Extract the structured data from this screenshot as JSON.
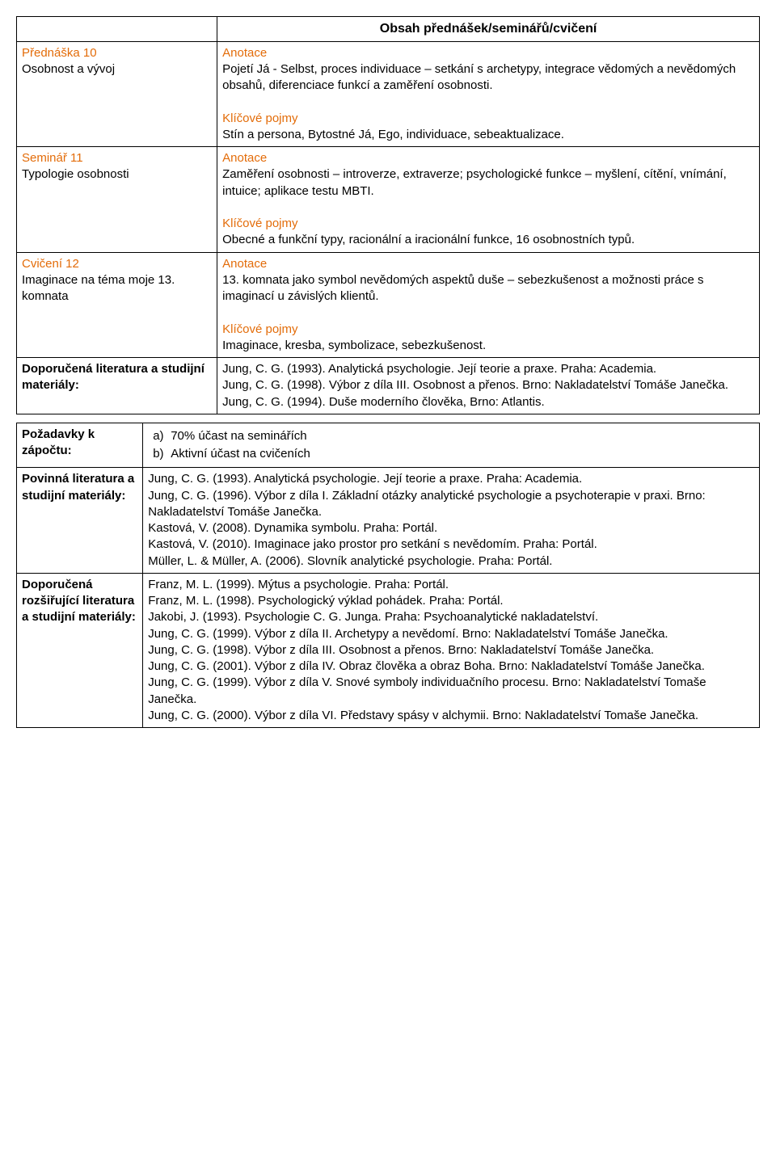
{
  "colors": {
    "accent": "#e36c09",
    "text": "#000000",
    "border": "#000000",
    "bg": "#ffffff"
  },
  "t1": {
    "header": "Obsah přednášek/seminářů/cvičení",
    "rows": [
      {
        "left_title": "Přednáška 10",
        "left_sub": "Osobnost a vývoj",
        "anot_label": "Anotace",
        "anot": "Pojetí Já - Selbst, proces individuace – setkání s archetypy, integrace vědomých a nevědomých obsahů, diferenciace funkcí a zaměření osobnosti.",
        "kp_label": "Klíčové pojmy",
        "kp": "Stín a persona, Bytostné Já, Ego, individuace, sebeaktualizace."
      },
      {
        "left_title": "Seminář 11",
        "left_sub": "Typologie osobnosti",
        "anot_label": "Anotace",
        "anot": "Zaměření osobnosti – introverze, extraverze; psychologické funkce – myšlení, cítění, vnímání, intuice; aplikace testu MBTI.",
        "kp_label": "Klíčové pojmy",
        "kp": "Obecné a funkční typy, racionální a iracionální funkce, 16 osobnostních typů."
      },
      {
        "left_title": "Cvičení 12",
        "left_sub": "Imaginace na téma moje 13. komnata",
        "anot_label": "Anotace",
        "anot": "13. komnata jako symbol nevědomých aspektů duše – sebezkušenost a možnosti práce s imaginací u závislých klientů.",
        "kp_label": "Klíčové pojmy",
        "kp": "Imaginace, kresba, symbolizace, sebezkušenost."
      }
    ],
    "lit_left": "Doporučená literatura a studijní materiály:",
    "lit_right": "Jung, C. G. (1993). Analytická psychologie. Její teorie a praxe. Praha: Academia.\nJung, C. G. (1998). Výbor z díla III. Osobnost a přenos. Brno: Nakladatelství Tomáše Janečka.\nJung, C. G. (1994). Duše moderního člověka, Brno: Atlantis."
  },
  "t2": {
    "rows": [
      {
        "left": "Požadavky k zápočtu:",
        "type": "list",
        "items": [
          {
            "marker": "a)",
            "text": "70% účast na seminářích"
          },
          {
            "marker": "b)",
            "text": "Aktivní účast na cvičeních"
          }
        ]
      },
      {
        "left": "Povinná literatura a studijní materiály:",
        "type": "text",
        "text": "Jung, C. G. (1993). Analytická psychologie. Její teorie a praxe. Praha: Academia.\nJung, C. G. (1996). Výbor z díla I. Základní otázky analytické psychologie a psychoterapie v praxi. Brno: Nakladatelství Tomáše Janečka.\nKastová, V. (2008). Dynamika symbolu. Praha: Portál.\nKastová, V. (2010). Imaginace jako prostor pro setkání s nevědomím. Praha: Portál.\nMüller, L. & Müller, A. (2006). Slovník analytické psychologie. Praha: Portál."
      },
      {
        "left": "Doporučená rozšiřující literatura a studijní materiály:",
        "type": "text",
        "text": "Franz, M. L. (1999). Mýtus a psychologie. Praha: Portál.\nFranz, M. L. (1998). Psychologický výklad pohádek. Praha: Portál.\nJakobi, J. (1993). Psychologie C. G. Junga. Praha: Psychoanalytické nakladatelství.\nJung, C. G. (1999). Výbor z díla II. Archetypy a nevědomí. Brno: Nakladatelství Tomáše Janečka.\nJung, C. G. (1998). Výbor z díla III. Osobnost a přenos. Brno: Nakladatelství Tomáše Janečka.\nJung, C. G. (2001). Výbor z díla IV. Obraz člověka a obraz Boha. Brno: Nakladatelství Tomáše Janečka.\nJung, C. G. (1999). Výbor z díla V. Snové symboly individuačního procesu. Brno: Nakladatelství Tomaše Janečka.\nJung, C. G. (2000). Výbor z díla VI. Představy spásy v alchymii. Brno: Nakladatelství Tomaše Janečka."
      }
    ]
  }
}
